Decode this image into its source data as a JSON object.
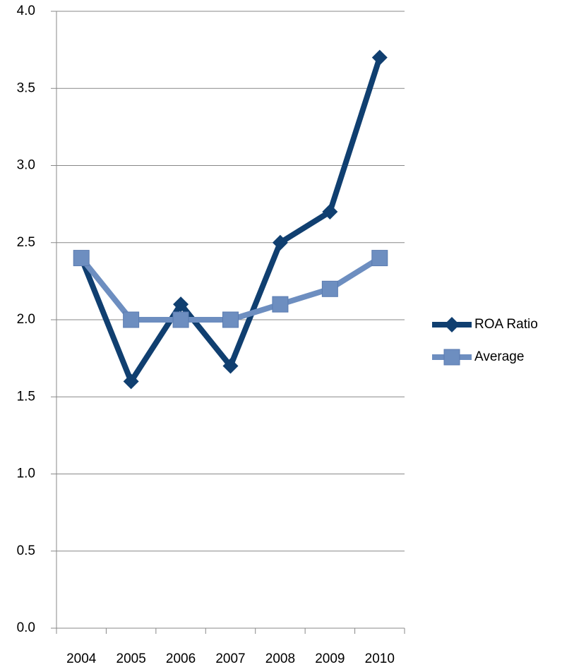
{
  "chart_data": {
    "type": "line",
    "categories": [
      "2004",
      "2005",
      "2006",
      "2007",
      "2008",
      "2009",
      "2010"
    ],
    "series": [
      {
        "name": "ROA Ratio",
        "color": "#103f70",
        "marker": "diamond",
        "values": [
          2.4,
          1.6,
          2.1,
          1.7,
          2.5,
          2.7,
          3.7
        ]
      },
      {
        "name": "Average",
        "color": "#6d8ec0",
        "marker": "square",
        "values": [
          2.4,
          2.0,
          2.0,
          2.0,
          2.1,
          2.2,
          2.4
        ]
      }
    ],
    "ylim": [
      0,
      4
    ],
    "yticks": [
      {
        "value": 0,
        "label": "0.0"
      },
      0.5,
      {
        "value": 1,
        "label": "1.0"
      },
      1.5,
      {
        "value": 2,
        "label": "2.0"
      },
      2.5,
      {
        "value": 3,
        "label": "3.0"
      },
      3.5,
      {
        "value": 4,
        "label": "4.0"
      }
    ],
    "grid": true,
    "legend": "right"
  }
}
